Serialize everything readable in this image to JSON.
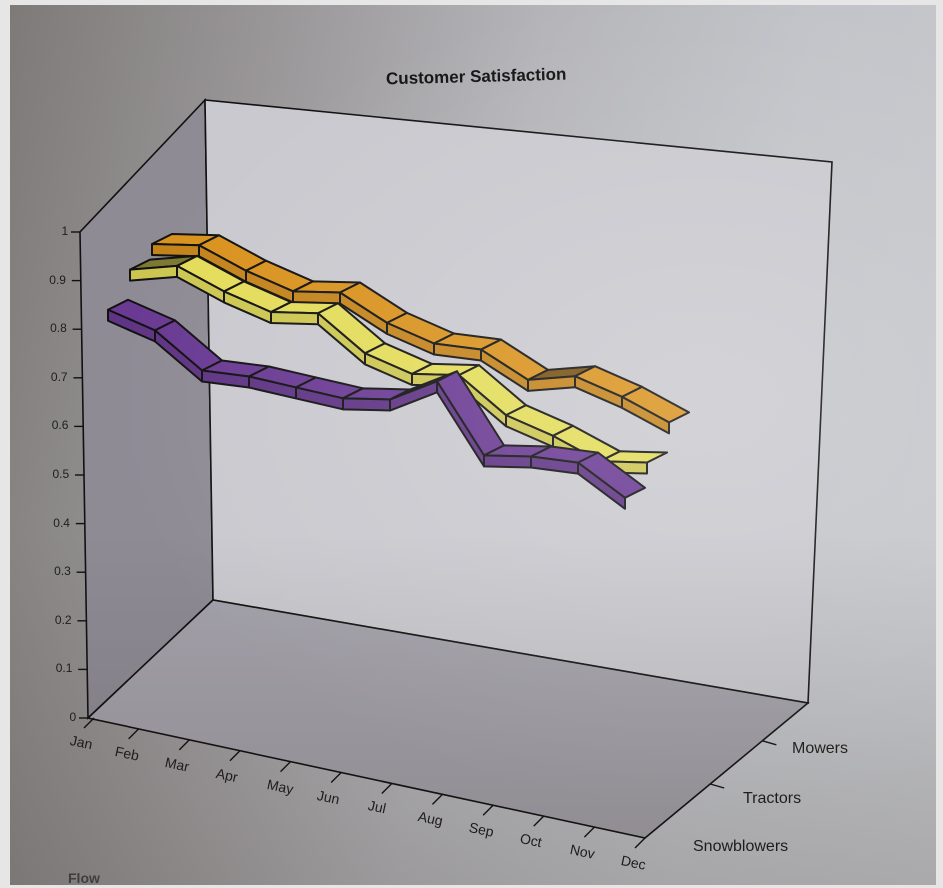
{
  "chart_data": {
    "type": "line",
    "subtype": "3d-ribbon",
    "title": "Customer Satisfaction",
    "xlabel": "",
    "ylabel": "",
    "zlabel": "",
    "categories": [
      "Jan",
      "Feb",
      "Mar",
      "Apr",
      "May",
      "Jun",
      "Jul",
      "Aug",
      "Sep",
      "Oct",
      "Nov",
      "Dec"
    ],
    "series": [
      {
        "name": "Mowers",
        "color": "#d9921e",
        "values": [
          0.93,
          0.95,
          0.92,
          0.9,
          0.92,
          0.88,
          0.86,
          0.87,
          0.83,
          0.86,
          0.84,
          0.81
        ]
      },
      {
        "name": "Tractors",
        "color": "#e3dc5a",
        "values": [
          0.9,
          0.93,
          0.9,
          0.88,
          0.9,
          0.84,
          0.82,
          0.84,
          0.78,
          0.76,
          0.73,
          0.75
        ]
      },
      {
        "name": "Snowblowers",
        "color": "#6a3a93",
        "values": [
          0.84,
          0.82,
          0.76,
          0.77,
          0.77,
          0.77,
          0.79,
          0.85,
          0.72,
          0.74,
          0.75,
          0.7
        ]
      }
    ],
    "yticks": [
      "0",
      "0.1",
      "0.2",
      "0.3",
      "0.4",
      "0.5",
      "0.6",
      "0.7",
      "0.8",
      "0.9",
      "1"
    ],
    "ylim": [
      0,
      1
    ],
    "depth_labels": [
      "Mowers",
      "Tractors",
      "Snowblowers"
    ],
    "grid": false,
    "legend": "none (series labeled on depth axis)"
  },
  "page": {
    "bleed_text": "Flow"
  }
}
